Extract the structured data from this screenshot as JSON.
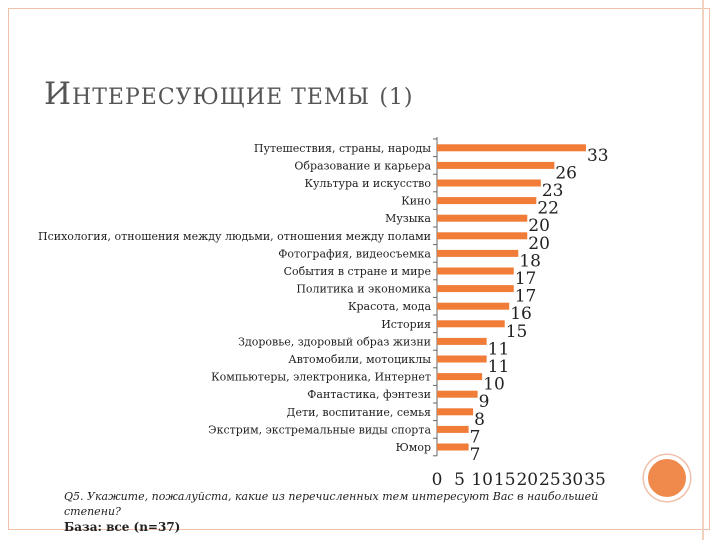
{
  "slide": {
    "title_initial": "И",
    "title_rest": "НТЕРЕСУЮЩИЕ ТЕМЫ",
    "title_suffix": "(1)",
    "question": "Q5. Укажите, пожалуйста, какие из перечисленных тем интересуют Вас в наибольшей степени?",
    "base": "База: все (n=37)"
  },
  "colors": {
    "bar": "#f07c38",
    "accent": "#ef8a4c",
    "frame": "#f0c0a8"
  },
  "chart_data": {
    "type": "bar",
    "orientation": "horizontal",
    "categories": [
      "Путешествия, страны, народы",
      "Образование и карьера",
      "Культура и искусство",
      "Кино",
      "Музыка",
      "Психология, отношения между людьми, отношения между полами",
      "Фотография, видеосъемка",
      "События в стране и мире",
      "Политика и экономика",
      "Красота, мода",
      "История",
      "Здоровье, здоровый образ жизни",
      "Автомобили, мотоциклы",
      "Компьютеры, электроника, Интернет",
      "Фантастика, фэнтези",
      "Дети, воспитание, семья",
      "Экстрим, экстремальные виды спорта",
      "Юмор"
    ],
    "values": [
      33,
      26,
      23,
      22,
      20,
      20,
      18,
      17,
      17,
      16,
      15,
      11,
      11,
      10,
      9,
      8,
      7,
      7
    ],
    "x_ticks": [
      0,
      5,
      10,
      15,
      20,
      25,
      30,
      35
    ],
    "xlim": [
      0,
      35
    ],
    "data_labels": true,
    "legend": "none",
    "grid": false
  }
}
